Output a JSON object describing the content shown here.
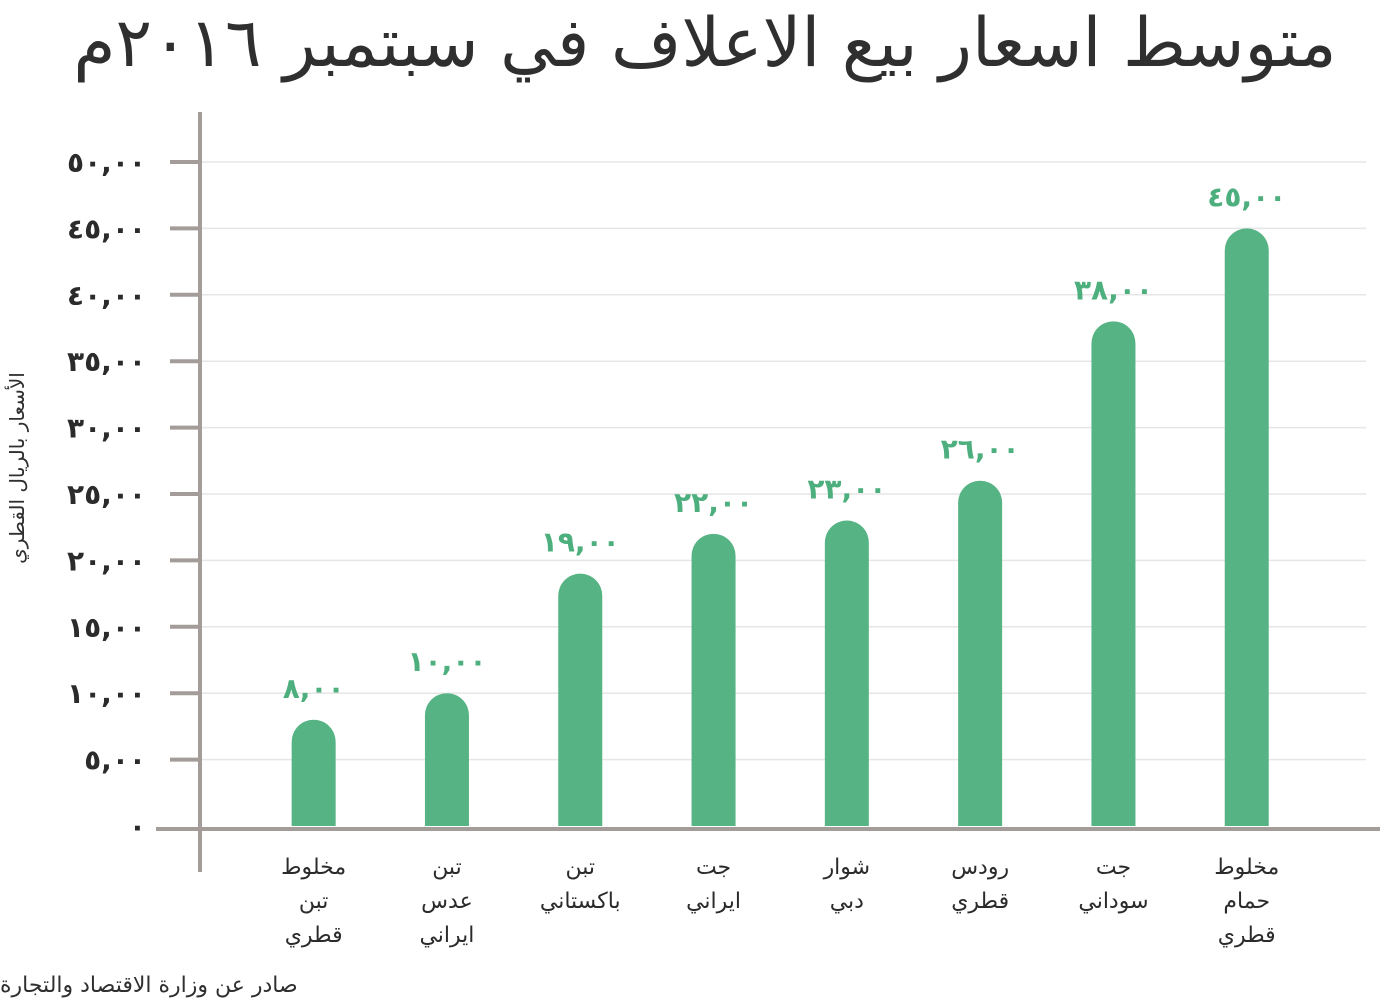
{
  "chart_data": {
    "type": "bar",
    "title": "متوسط اسعار بيع الاعلاف في سبتمبر ٢٠١٦م",
    "ylabel": "الأسعار بالريال القطري",
    "source": "صادر عن وزارة الاقتصاد والتجارة",
    "ylim": [
      0,
      50
    ],
    "yticks": [
      0,
      5,
      10,
      15,
      20,
      25,
      30,
      35,
      40,
      45,
      50
    ],
    "ytick_labels": [
      "٠",
      "٥,٠٠",
      "١٠,٠٠",
      "١٥,٠٠",
      "٢٠,٠٠",
      "٢٥,٠٠",
      "٣٠,٠٠",
      "٣٥,٠٠",
      "٤٠,٠٠",
      "٤٥,٠٠",
      "٥٠,٠٠"
    ],
    "grid": true,
    "bar_color": "#55b384",
    "categories": [
      [
        "مخلوط",
        "تبن",
        "قطري"
      ],
      [
        "تبن",
        "عدس",
        "ايراني"
      ],
      [
        "تبن",
        "باكستاني"
      ],
      [
        "جت",
        "ايراني"
      ],
      [
        "شوار",
        "دبي"
      ],
      [
        "رودس",
        "قطري"
      ],
      [
        "جت",
        "سوداني"
      ],
      [
        "مخلوط",
        "حمام",
        "قطري"
      ]
    ],
    "values": [
      8,
      10,
      19,
      22,
      23,
      26,
      38,
      45
    ],
    "value_labels": [
      "٨,٠٠",
      "١٠,٠٠",
      "١٩,٠٠",
      "٢٢,٠٠",
      "٢٣,٠٠",
      "٢٦,٠٠",
      "٣٨,٠٠",
      "٤٥,٠٠"
    ]
  }
}
